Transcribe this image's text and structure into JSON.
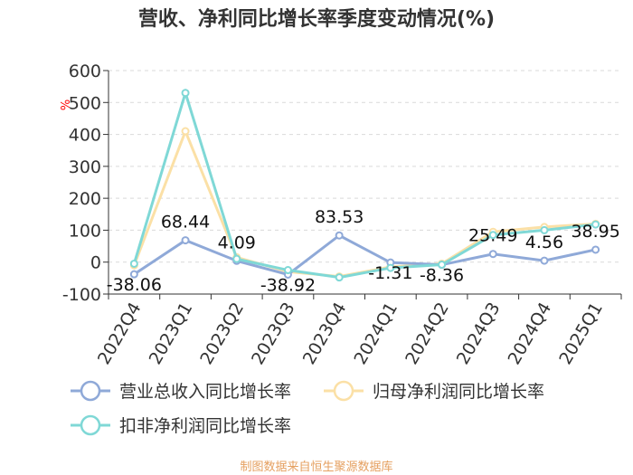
{
  "chart_data": {
    "type": "line",
    "title": "营收、净利同比增长率季度变动情况(%)",
    "ylabel": "%",
    "xlabel": "",
    "categories": [
      "2022Q4",
      "2023Q1",
      "2023Q2",
      "2023Q3",
      "2023Q4",
      "2024Q1",
      "2024Q2",
      "2024Q3",
      "2024Q4",
      "2025Q1"
    ],
    "ylim": [
      -100,
      600
    ],
    "yticks": [
      "-100",
      "0",
      "100",
      "200",
      "300",
      "400",
      "500",
      "600"
    ],
    "grid": true,
    "legend_position": "bottom",
    "series": [
      {
        "name": "营业总收入同比增长率",
        "color": "#8fa9d8",
        "values": [
          -38.06,
          68.44,
          4.09,
          -38.92,
          83.53,
          -1.31,
          -8.36,
          25.49,
          4.56,
          38.95
        ],
        "labels": [
          "-38.06",
          "68.44",
          "4.09",
          "-38.92",
          "83.53",
          "-1.31",
          "-8.36",
          "25.49",
          "4.56",
          "38.95"
        ]
      },
      {
        "name": "归母净利润同比增长率",
        "color": "#fbe0a6",
        "values": [
          -10,
          410,
          15,
          -30,
          -45,
          -15,
          -5,
          95,
          110,
          120
        ]
      },
      {
        "name": "扣非净利润同比增长率",
        "color": "#7fd8d6",
        "values": [
          -5,
          530,
          10,
          -25,
          -48,
          -18,
          -8,
          85,
          100,
          118
        ]
      }
    ]
  },
  "source": {
    "text": "制图数据来自恒生聚源数据库",
    "color": "#e5a060"
  }
}
